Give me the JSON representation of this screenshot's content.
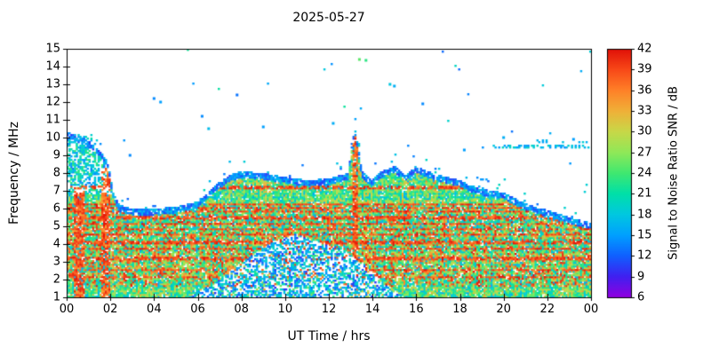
{
  "chart_data": {
    "type": "heatmap",
    "title": "2025-05-27",
    "xlabel": "UT Time / hrs",
    "ylabel": "Frequency / MHz",
    "x_range_hours": [
      0,
      24
    ],
    "x_ticks": [
      "00",
      "02",
      "04",
      "06",
      "08",
      "10",
      "12",
      "14",
      "16",
      "18",
      "20",
      "22",
      "00"
    ],
    "y_range_mhz": [
      1,
      15
    ],
    "y_ticks": [
      "1",
      "2",
      "3",
      "4",
      "5",
      "6",
      "7",
      "8",
      "9",
      "10",
      "11",
      "12",
      "13",
      "14",
      "15"
    ],
    "grid": false,
    "background": "#ffffff",
    "frame_color": "#000000",
    "colorbar": {
      "label": "Signal to Noise Ratio SNR / dB",
      "range": [
        6,
        42
      ],
      "ticks": [
        "6",
        "9",
        "12",
        "15",
        "18",
        "21",
        "24",
        "27",
        "30",
        "33",
        "36",
        "39",
        "42"
      ]
    },
    "colormap": [
      {
        "snr": 6,
        "color": "#9000e0"
      },
      {
        "snr": 9,
        "color": "#4020f0"
      },
      {
        "snr": 12,
        "color": "#1060ff"
      },
      {
        "snr": 15,
        "color": "#00a0ff"
      },
      {
        "snr": 18,
        "color": "#00c8e0"
      },
      {
        "snr": 21,
        "color": "#00e0a8"
      },
      {
        "snr": 24,
        "color": "#40e870"
      },
      {
        "snr": 27,
        "color": "#90e858"
      },
      {
        "snr": 30,
        "color": "#c8d848"
      },
      {
        "snr": 33,
        "color": "#f0b038"
      },
      {
        "snr": 36,
        "color": "#ff8028"
      },
      {
        "snr": 39,
        "color": "#f84818"
      },
      {
        "snr": 42,
        "color": "#e01008"
      }
    ],
    "max_frequency_envelope": [
      [
        0,
        10.3
      ],
      [
        0.8,
        10.0
      ],
      [
        1.5,
        9.3
      ],
      [
        1.9,
        8.6
      ],
      [
        2.1,
        7.0
      ],
      [
        2.4,
        6.2
      ],
      [
        3,
        6.0
      ],
      [
        4,
        6.0
      ],
      [
        5,
        6.1
      ],
      [
        6,
        6.4
      ],
      [
        6.5,
        7.0
      ],
      [
        7,
        7.5
      ],
      [
        7.5,
        7.9
      ],
      [
        8,
        8.1
      ],
      [
        9,
        8.0
      ],
      [
        10,
        7.8
      ],
      [
        11,
        7.6
      ],
      [
        12,
        7.7
      ],
      [
        12.9,
        8.0
      ],
      [
        13.05,
        9.9
      ],
      [
        13.2,
        10.5
      ],
      [
        13.35,
        9.4
      ],
      [
        13.5,
        8.1
      ],
      [
        14,
        7.6
      ],
      [
        14.4,
        8.1
      ],
      [
        15,
        8.4
      ],
      [
        15.5,
        7.9
      ],
      [
        16,
        8.4
      ],
      [
        16.5,
        8.1
      ],
      [
        17,
        7.9
      ],
      [
        18,
        7.6
      ],
      [
        18.5,
        7.3
      ],
      [
        19,
        7.1
      ],
      [
        20,
        6.9
      ],
      [
        20.5,
        6.6
      ],
      [
        21,
        6.3
      ],
      [
        22,
        5.9
      ],
      [
        23,
        5.5
      ],
      [
        24,
        5.2
      ]
    ],
    "strong_bands_mhz": [
      {
        "f": 2.15,
        "w": 0.06
      },
      {
        "f": 2.55,
        "w": 0.06
      },
      {
        "f": 3.2,
        "w": 0.08
      },
      {
        "f": 3.75,
        "w": 0.06
      },
      {
        "f": 4.1,
        "w": 0.06
      },
      {
        "f": 4.55,
        "w": 0.06
      },
      {
        "f": 4.85,
        "w": 0.06
      },
      {
        "f": 5.15,
        "w": 0.06
      },
      {
        "f": 5.5,
        "w": 0.06
      },
      {
        "f": 5.85,
        "w": 0.07
      },
      {
        "f": 6.05,
        "w": 0.08
      },
      {
        "f": 6.25,
        "w": 0.06
      },
      {
        "f": 7.2,
        "w": 0.06
      }
    ],
    "column_features": [
      {
        "t0": 0.35,
        "t1": 0.85,
        "fmax": 7.3,
        "boost": 9
      },
      {
        "t0": 1.55,
        "t1": 2.0,
        "fmax": 8.3,
        "boost": 10
      },
      {
        "t0": 13.05,
        "t1": 13.35,
        "fmax": 10.3,
        "boost": 12
      }
    ],
    "absorption_wedge": [
      [
        5.5,
        1.0
      ],
      [
        7,
        2.0
      ],
      [
        8,
        3.0
      ],
      [
        9.5,
        4.2
      ],
      [
        10.5,
        4.6
      ],
      [
        11.5,
        4.2
      ],
      [
        12.5,
        3.8
      ],
      [
        13.5,
        3.0
      ],
      [
        14.5,
        1.8
      ],
      [
        15.5,
        1.0
      ]
    ],
    "scatter_lines": [
      {
        "t0": 19.5,
        "t1": 24,
        "f": 9.5,
        "w": 0.15,
        "density": 0.45,
        "snr": [
          14,
          20
        ]
      },
      {
        "t0": 21,
        "t1": 24,
        "f": 9.8,
        "w": 0.1,
        "density": 0.2,
        "snr": [
          14,
          19
        ]
      },
      {
        "t0": 0,
        "t1": 1.2,
        "f": 9.9,
        "w": 0.3,
        "density": 0.3,
        "snr": [
          14,
          22
        ]
      }
    ],
    "isolated_dots": [
      [
        4.0,
        12.2,
        14
      ],
      [
        4.3,
        12.0,
        15
      ],
      [
        6.2,
        11.2,
        14
      ],
      [
        6.5,
        10.5,
        17
      ],
      [
        9.0,
        10.6,
        15
      ],
      [
        12.2,
        10.8,
        16
      ],
      [
        13.4,
        14.4,
        25
      ],
      [
        13.7,
        14.35,
        23
      ],
      [
        14.8,
        13.0,
        18
      ],
      [
        15.0,
        12.9,
        16
      ],
      [
        16.3,
        11.9,
        14
      ],
      [
        18.2,
        9.3,
        15
      ],
      [
        20.0,
        10.0,
        16
      ],
      [
        23.2,
        9.9,
        15
      ],
      [
        2.9,
        9.0,
        14
      ],
      [
        7.8,
        12.4,
        13
      ]
    ]
  }
}
